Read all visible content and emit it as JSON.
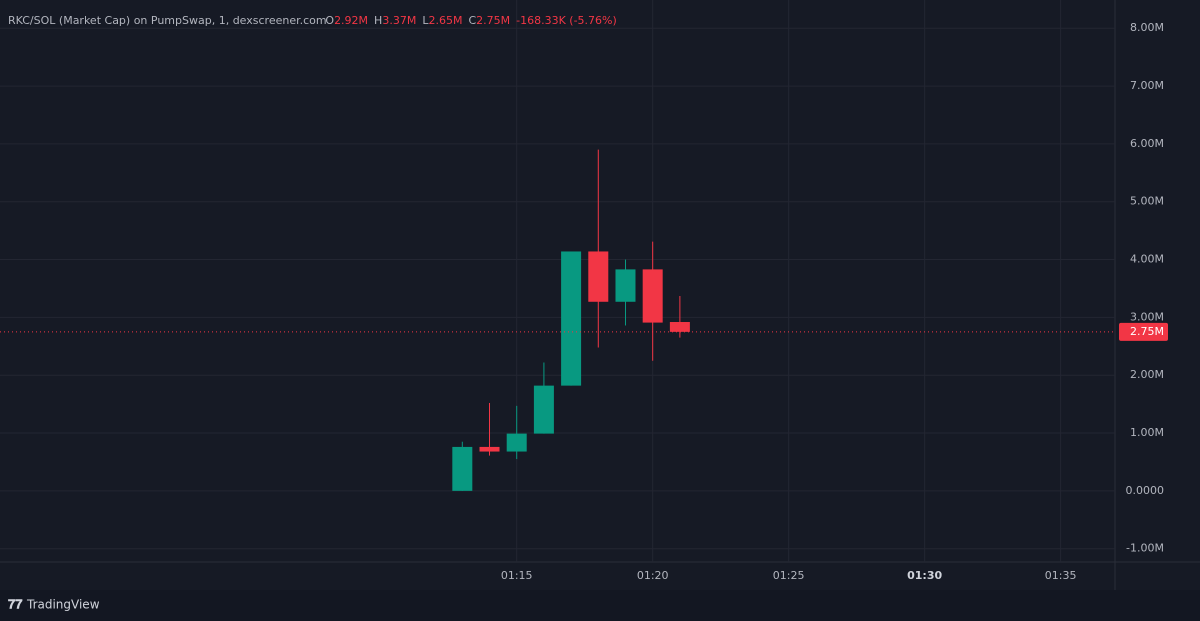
{
  "chart_data": {
    "type": "candlestick",
    "title": "RKC/SOL (Market Cap) on PumpSwap, 1, dexscreener.com",
    "ohlc_legend": [
      {
        "label": "O",
        "value": "2.92M"
      },
      {
        "label": "H",
        "value": "3.37M"
      },
      {
        "label": "L",
        "value": "2.65M"
      },
      {
        "label": "C",
        "value": "2.75M"
      }
    ],
    "change": "-168.33K (-5.76%)",
    "x": [
      "01:13",
      "01:14",
      "01:15",
      "01:16",
      "01:17",
      "01:18",
      "01:19",
      "01:20",
      "01:21"
    ],
    "open": [
      0,
      760000,
      680000,
      990000,
      1820000,
      4140000,
      3270000,
      3830000,
      2920000
    ],
    "high": [
      850000,
      1520000,
      1470000,
      2220000,
      4140000,
      5900000,
      4000000,
      4310000,
      3370000
    ],
    "low": [
      0,
      610000,
      550000,
      990000,
      1820000,
      2480000,
      2860000,
      2250000,
      2650000
    ],
    "close": [
      760000,
      680000,
      990000,
      1820000,
      4140000,
      3270000,
      3830000,
      2910000,
      2750000
    ],
    "up_color": "#089981",
    "down_color": "#f23645",
    "xlim": [
      "00:56",
      "01:37"
    ],
    "xticks": [
      "01:15",
      "01:20",
      "01:25",
      "01:30",
      "01:35"
    ],
    "ylim": [
      -1230000,
      8350000
    ],
    "yticks": [
      {
        "value": -1000000,
        "label": "-1.00M"
      },
      {
        "value": 0,
        "label": "0.0000"
      },
      {
        "value": 1000000,
        "label": "1.00M"
      },
      {
        "value": 2000000,
        "label": "2.00M"
      },
      {
        "value": 3000000,
        "label": "3.00M"
      },
      {
        "value": 4000000,
        "label": "4.00M"
      },
      {
        "value": 5000000,
        "label": "5.00M"
      },
      {
        "value": 6000000,
        "label": "6.00M"
      },
      {
        "value": 7000000,
        "label": "7.00M"
      },
      {
        "value": 8000000,
        "label": "8.00M"
      }
    ],
    "last_price": {
      "value": 2750000,
      "label": "2.75M"
    },
    "grid": true,
    "footer": "TradingView"
  }
}
